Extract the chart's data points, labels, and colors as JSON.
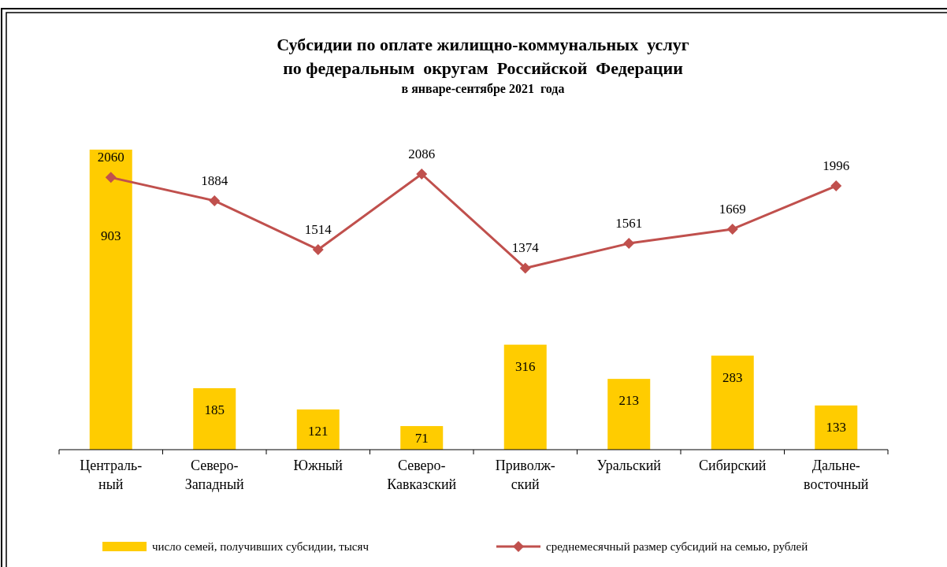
{
  "chart_data": {
    "type": "bar",
    "title": "Субсидии по оплате жилищно-коммунальных  услуг\nпо федеральным  округам  Российской  Федерации",
    "subtitle": "в январе-сентябре 2021  года",
    "categories": [
      "Централь-\nный",
      "Северо-\nЗападный",
      "Южный",
      "Северо-\nКавказский",
      "Приволж-\nский",
      "Уральский",
      "Сибирский",
      "Дальне-\nвосточный"
    ],
    "series": [
      {
        "name": "число семей, получивших субсидии, тысяч",
        "color": "#ffcc00",
        "values": [
          903,
          185,
          121,
          71,
          316,
          213,
          283,
          133
        ]
      },
      {
        "name": "среднемесячный размер субсидий на семью, рублей",
        "type": "line",
        "axis": "y2",
        "color": "#c0504d",
        "marker": "diamond",
        "values": [
          2060,
          1884,
          1514,
          2086,
          1374,
          1561,
          1669,
          1996
        ]
      }
    ],
    "data_labels": true,
    "legend": "bottom",
    "tick_labels": "x"
  }
}
